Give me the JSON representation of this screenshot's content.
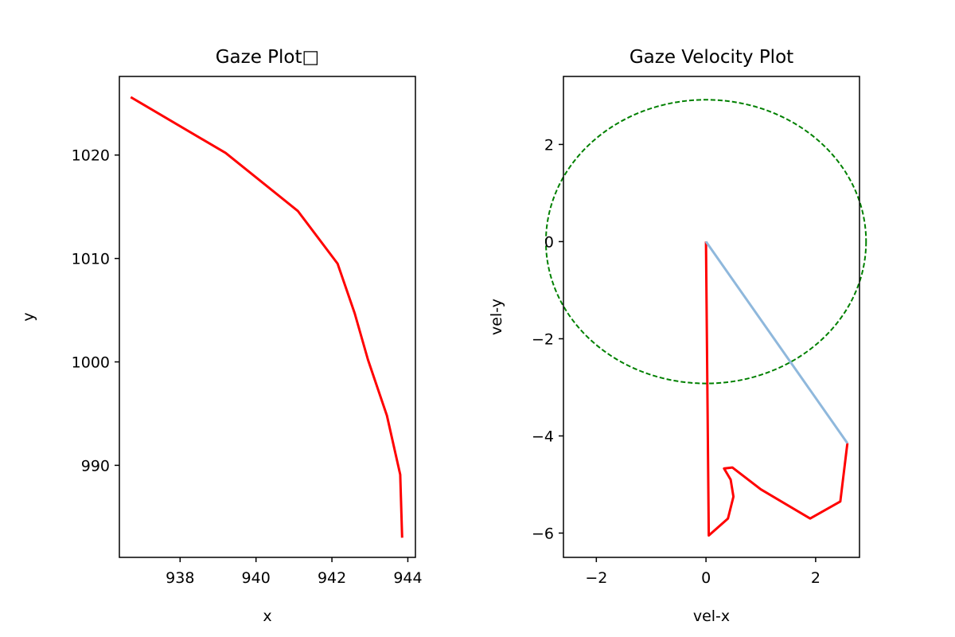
{
  "chart_data": [
    {
      "type": "line",
      "title": "Gaze Plot□",
      "xlabel": "x",
      "ylabel": "y",
      "xlim": [
        936.4,
        944.2
      ],
      "ylim": [
        981.1,
        1027.6
      ],
      "xticks": [
        "938",
        "940",
        "942",
        "944"
      ],
      "yticks": [
        "990",
        "1000",
        "1010",
        "1020"
      ],
      "grid": false,
      "series": [
        {
          "color": "#ff0000",
          "x": [
            936.7,
            939.2,
            941.1,
            942.15,
            942.6,
            942.95,
            943.45,
            943.8,
            943.85
          ],
          "y": [
            1025.6,
            1020.2,
            1014.6,
            1009.5,
            1004.7,
            1000.2,
            994.8,
            989.1,
            983.0
          ]
        }
      ]
    },
    {
      "type": "line",
      "title": "Gaze Velocity Plot",
      "xlabel": "vel-x",
      "ylabel": "vel-y",
      "xlim": [
        -2.6,
        2.8
      ],
      "ylim": [
        -6.5,
        3.4
      ],
      "xticks": [
        "−2",
        "0",
        "2"
      ],
      "yticks": [
        "−6",
        "−4",
        "−2",
        "0",
        "2"
      ],
      "grid": false,
      "circle": {
        "center": [
          0,
          0
        ],
        "radius": 2.92,
        "color": "#008000",
        "style": "dashed"
      },
      "series": [
        {
          "color": "#ff0000",
          "x": [
            0.0,
            0.05,
            0.4,
            0.5,
            0.45,
            0.33,
            0.48,
            1.0,
            1.9,
            2.45,
            2.58
          ],
          "y": [
            0.0,
            -6.05,
            -5.7,
            -5.25,
            -4.9,
            -4.67,
            -4.65,
            -5.1,
            -5.7,
            -5.35,
            -4.15
          ]
        },
        {
          "color": "#8fb8dc",
          "x": [
            0.0,
            2.58
          ],
          "y": [
            0.0,
            -4.15
          ]
        }
      ]
    }
  ]
}
